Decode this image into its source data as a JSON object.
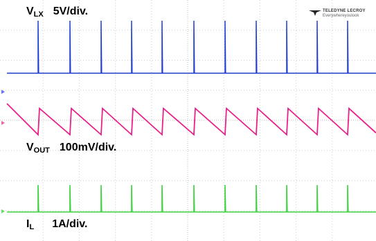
{
  "traces": [
    {
      "symbol": "V",
      "subscript": "LX",
      "scale": "5V/div."
    },
    {
      "symbol": "V",
      "subscript": "OUT",
      "scale": "100mV/div."
    },
    {
      "symbol": "I",
      "subscript": "L",
      "scale": "1A/div."
    }
  ],
  "logo": {
    "brand": "TELEDYNE LECROY",
    "tagline": "Everywhereyoulook"
  }
}
